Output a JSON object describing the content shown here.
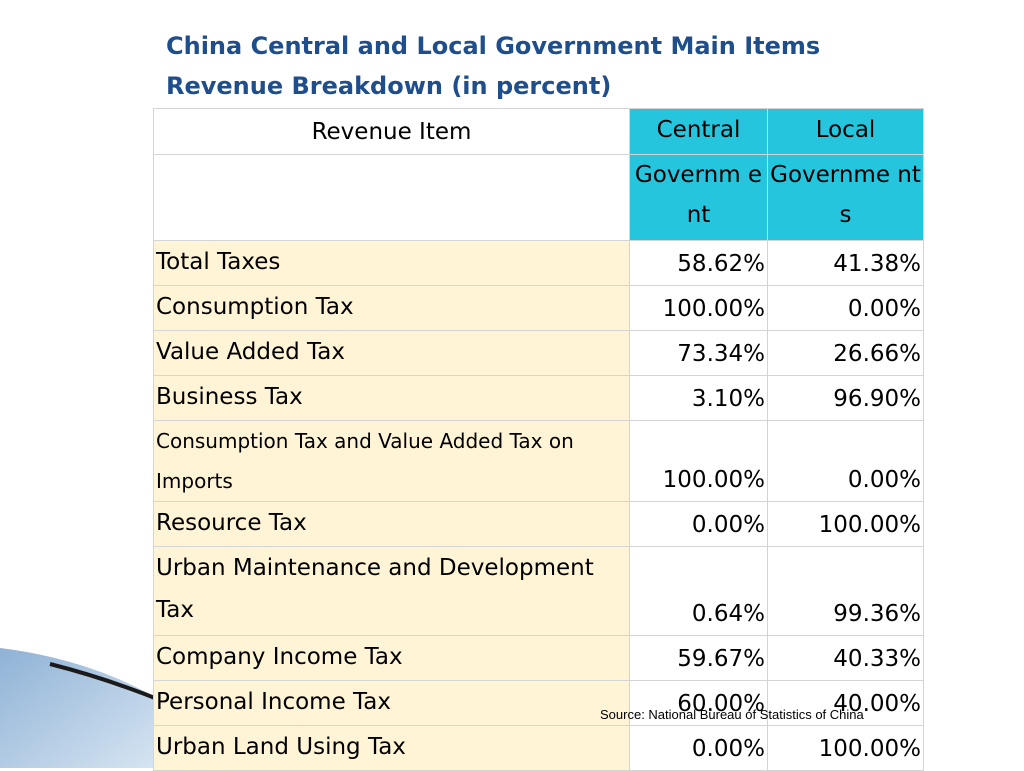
{
  "title": {
    "line1": "China Central and Local Government Main Items",
    "line2": "Revenue Breakdown (in percent)"
  },
  "table": {
    "header": {
      "item": "Revenue Item",
      "central_top": "Central",
      "central_bottom": "Governm ent",
      "local_top": "Local",
      "local_bottom": "Governme nts"
    },
    "rows": [
      {
        "item": "Total Taxes",
        "central": "58.62%",
        "local": "41.38%"
      },
      {
        "item": "Consumption Tax",
        "central": "100.00%",
        "local": "0.00%"
      },
      {
        "item": "Value Added Tax",
        "central": "73.34%",
        "local": "26.66%"
      },
      {
        "item": "Business Tax",
        "central": "3.10%",
        "local": "96.90%"
      },
      {
        "item": "Consumption Tax and Value Added Tax on Imports",
        "central": "100.00%",
        "local": "0.00%"
      },
      {
        "item": "Resource Tax",
        "central": "0.00%",
        "local": "100.00%"
      },
      {
        "item": "Urban Maintenance and Development Tax",
        "central": "0.64%",
        "local": "99.36%"
      },
      {
        "item": "Company Income Tax",
        "central": "59.67%",
        "local": "40.33%"
      },
      {
        "item": "Personal Income Tax",
        "central": "60.00%",
        "local": "40.00%"
      },
      {
        "item": "Urban Land Using Tax",
        "central": "0.00%",
        "local": "100.00%"
      }
    ]
  },
  "source": "Source: National Bureau of Statistics of China",
  "colors": {
    "title": "#1f4e8c",
    "header_fill": "#26c5de",
    "item_fill": "#fff4d6"
  }
}
